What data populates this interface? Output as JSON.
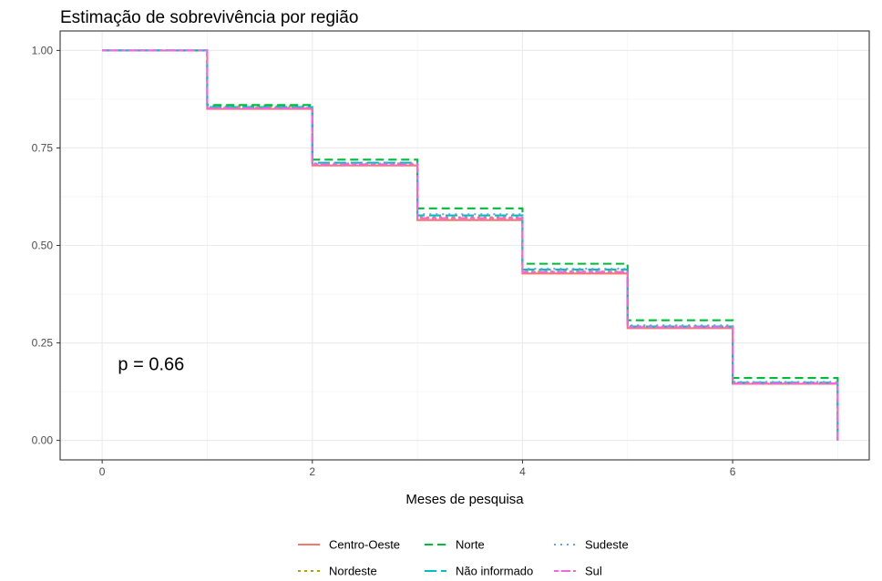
{
  "chart_data": {
    "type": "line",
    "step": true,
    "title": "Estimação de sobrevivência por região",
    "xlabel": "Meses de pesquisa",
    "ylabel": "",
    "xlim": [
      -0.4,
      7.3
    ],
    "ylim": [
      -0.05,
      1.05
    ],
    "x_ticks": [
      0,
      2,
      4,
      6
    ],
    "x_tick_labels": [
      "0",
      "2",
      "4",
      "6"
    ],
    "y_ticks": [
      0,
      0.25,
      0.5,
      0.75,
      1.0
    ],
    "y_tick_labels": [
      "0.00",
      "0.25",
      "0.50",
      "0.75",
      "1.00"
    ],
    "grid": true,
    "legend_position": "bottom",
    "annotation": "p = 0.66",
    "x": [
      0,
      1,
      2,
      3,
      4,
      5,
      6,
      7
    ],
    "series": [
      {
        "name": "Centro-Oeste",
        "color": "#F8766D",
        "dash": "solid",
        "values": [
          1.0,
          0.85,
          0.705,
          0.565,
          0.428,
          0.288,
          0.145,
          0.0
        ]
      },
      {
        "name": "Nordeste",
        "color": "#B79F00",
        "dash": "dotted-short",
        "values": [
          1.0,
          0.857,
          0.71,
          0.572,
          0.433,
          0.293,
          0.147,
          0.0
        ]
      },
      {
        "name": "Norte",
        "color": "#00BA38",
        "dash": "dashed",
        "values": [
          1.0,
          0.86,
          0.72,
          0.595,
          0.453,
          0.308,
          0.16,
          0.0
        ]
      },
      {
        "name": "Não informado",
        "color": "#00BFC4",
        "dash": "longdash",
        "values": [
          1.0,
          0.855,
          0.712,
          0.577,
          0.438,
          0.292,
          0.148,
          0.0
        ]
      },
      {
        "name": "Sudeste",
        "color": "#619CFF",
        "dash": "dotted",
        "values": [
          1.0,
          0.853,
          0.71,
          0.58,
          0.44,
          0.295,
          0.15,
          0.0
        ]
      },
      {
        "name": "Sul",
        "color": "#F564E3",
        "dash": "twodash",
        "values": [
          1.0,
          0.852,
          0.708,
          0.57,
          0.432,
          0.29,
          0.146,
          0.0
        ]
      }
    ]
  }
}
